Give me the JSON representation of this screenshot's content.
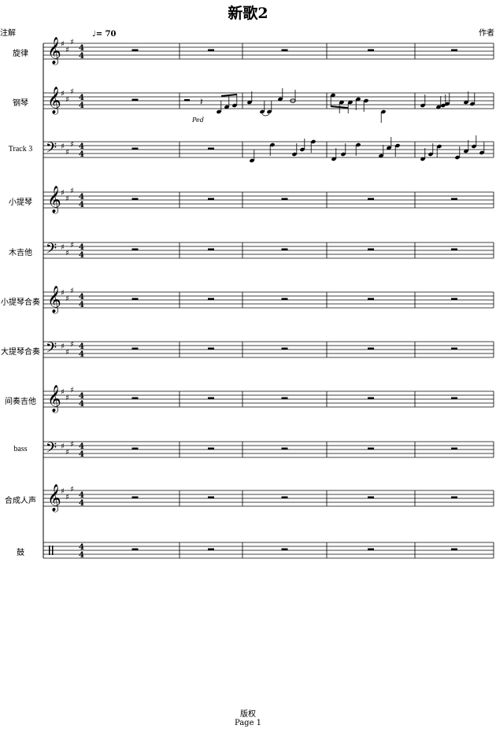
{
  "header": {
    "title": "新歌2",
    "annotation": "注解",
    "composer": "作者",
    "tempo": "= 70"
  },
  "footer": {
    "copyright": "版权",
    "page": "Page 1"
  },
  "score": {
    "key_signature": "3 sharps (A major)",
    "time_signature": [
      "4",
      "4"
    ],
    "measures": 5,
    "pedal_mark": "Ped",
    "staves": [
      {
        "name": "旋律",
        "clef": "treble"
      },
      {
        "name": "钢琴",
        "clef": "treble"
      },
      {
        "name": "Track 3",
        "clef": "bass"
      },
      {
        "name": "小提琴",
        "clef": "treble"
      },
      {
        "name": "木吉他",
        "clef": "bass"
      },
      {
        "name": "小提琴合奏",
        "clef": "treble"
      },
      {
        "name": "大提琴合奏",
        "clef": "bass"
      },
      {
        "name": "间奏吉他",
        "clef": "treble"
      },
      {
        "name": "bass",
        "clef": "bass"
      },
      {
        "name": "合成人声",
        "clef": "treble"
      },
      {
        "name": "鼓",
        "clef": "percussion"
      }
    ]
  }
}
